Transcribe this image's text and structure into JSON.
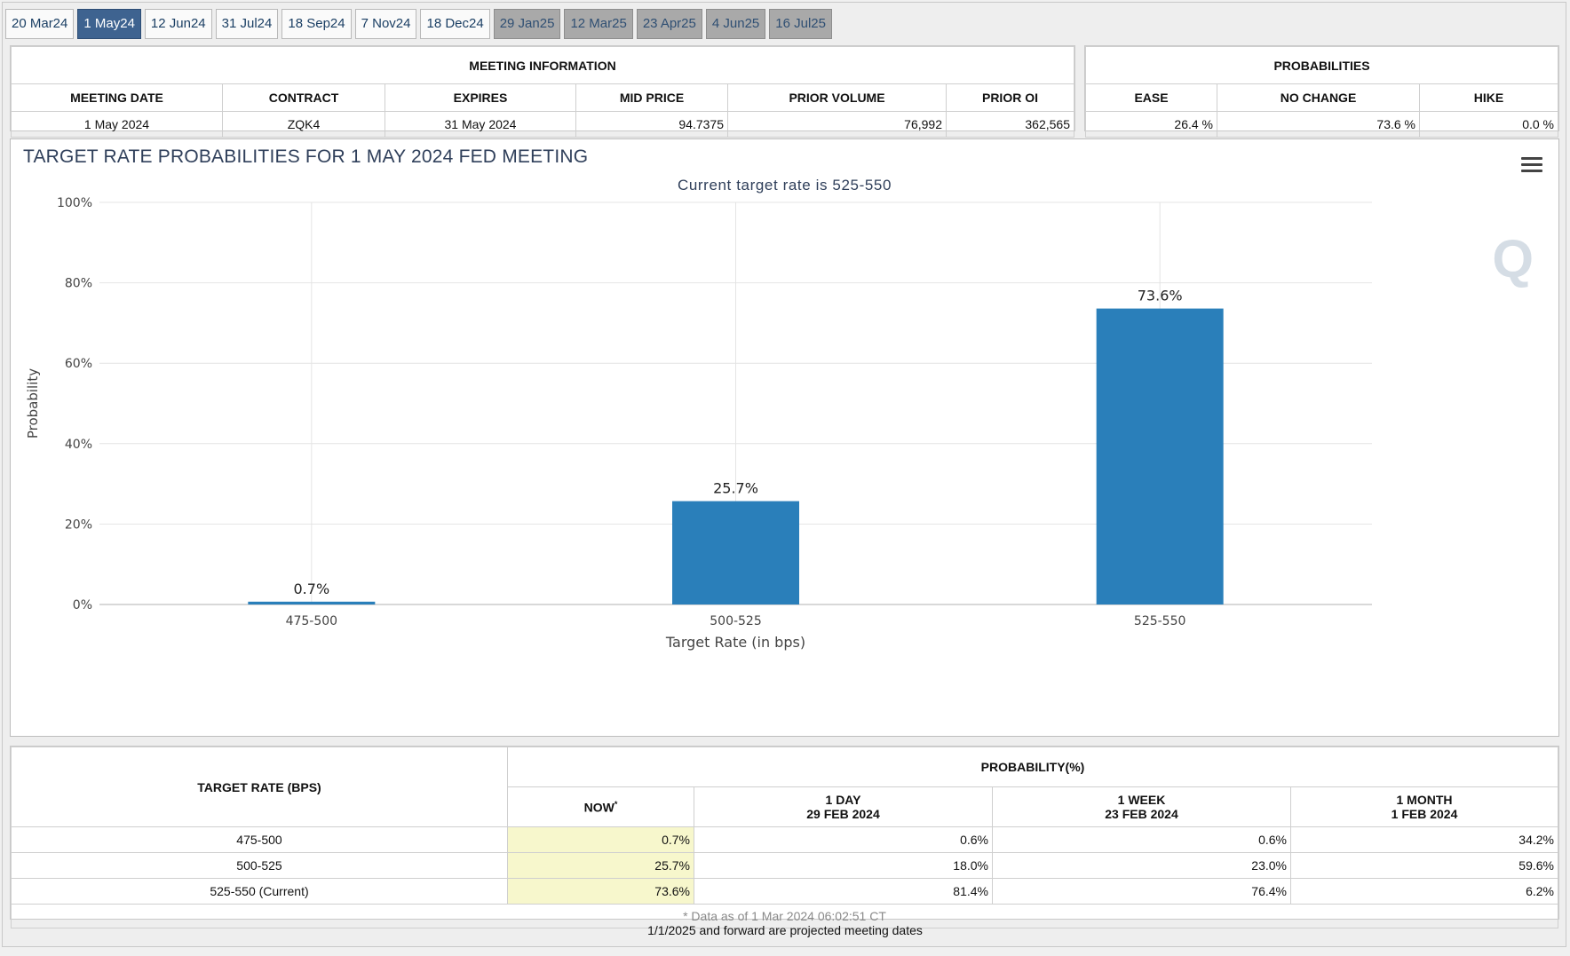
{
  "tabs": [
    {
      "label": "20 Mar24",
      "state": "normal"
    },
    {
      "label": "1 May24",
      "state": "active"
    },
    {
      "label": "12 Jun24",
      "state": "normal"
    },
    {
      "label": "31 Jul24",
      "state": "normal"
    },
    {
      "label": "18 Sep24",
      "state": "normal"
    },
    {
      "label": "7 Nov24",
      "state": "normal"
    },
    {
      "label": "18 Dec24",
      "state": "normal"
    },
    {
      "label": "29 Jan25",
      "state": "future"
    },
    {
      "label": "12 Mar25",
      "state": "future"
    },
    {
      "label": "23 Apr25",
      "state": "future"
    },
    {
      "label": "4 Jun25",
      "state": "future"
    },
    {
      "label": "16 Jul25",
      "state": "future"
    }
  ],
  "meeting_info": {
    "title": "MEETING INFORMATION",
    "headers": [
      "MEETING DATE",
      "CONTRACT",
      "EXPIRES",
      "MID PRICE",
      "PRIOR VOLUME",
      "PRIOR OI"
    ],
    "values": [
      "1 May 2024",
      "ZQK4",
      "31 May 2024",
      "94.7375",
      "76,992",
      "362,565"
    ]
  },
  "probabilities": {
    "title": "PROBABILITIES",
    "headers": [
      "EASE",
      "NO CHANGE",
      "HIKE"
    ],
    "values": [
      "26.4 %",
      "73.6 %",
      "0.0 %"
    ]
  },
  "chart": {
    "title": "TARGET RATE PROBABILITIES FOR 1 MAY 2024 FED MEETING",
    "subtitle": "Current target rate is 525-550"
  },
  "chart_data": {
    "type": "bar",
    "title": "TARGET RATE PROBABILITIES FOR 1 MAY 2024 FED MEETING",
    "subtitle": "Current target rate is 525-550",
    "categories": [
      "475-500",
      "500-525",
      "525-550"
    ],
    "values": [
      0.7,
      25.7,
      73.6
    ],
    "value_labels": [
      "0.7%",
      "25.7%",
      "73.6%"
    ],
    "xlabel": "Target Rate (in bps)",
    "ylabel": "Probability",
    "ylim": [
      0,
      100
    ],
    "yticks": [
      0,
      20,
      40,
      60,
      80,
      100
    ],
    "ytick_labels": [
      "0%",
      "20%",
      "40%",
      "60%",
      "80%",
      "100%"
    ],
    "grid": true,
    "bar_color": "#2a7fba"
  },
  "bottom_table": {
    "col1_header": "TARGET RATE (BPS)",
    "prob_header": "PROBABILITY(%)",
    "sub_headers": [
      {
        "line1": "NOW",
        "line2": "",
        "sup": "*"
      },
      {
        "line1": "1 DAY",
        "line2": "29 FEB 2024",
        "sup": ""
      },
      {
        "line1": "1 WEEK",
        "line2": "23 FEB 2024",
        "sup": ""
      },
      {
        "line1": "1 MONTH",
        "line2": "1 FEB 2024",
        "sup": ""
      }
    ],
    "rows": [
      {
        "rate": "475-500",
        "now": "0.7%",
        "day": "0.6%",
        "week": "0.6%",
        "month": "34.2%"
      },
      {
        "rate": "500-525",
        "now": "25.7%",
        "day": "18.0%",
        "week": "23.0%",
        "month": "59.6%"
      },
      {
        "rate": "525-550 (Current)",
        "now": "73.6%",
        "day": "81.4%",
        "week": "76.4%",
        "month": "6.2%"
      }
    ],
    "note": "* Data as of 1 Mar 2024 06:02:51 CT"
  },
  "footer": "1/1/2025 and forward are projected meeting dates"
}
